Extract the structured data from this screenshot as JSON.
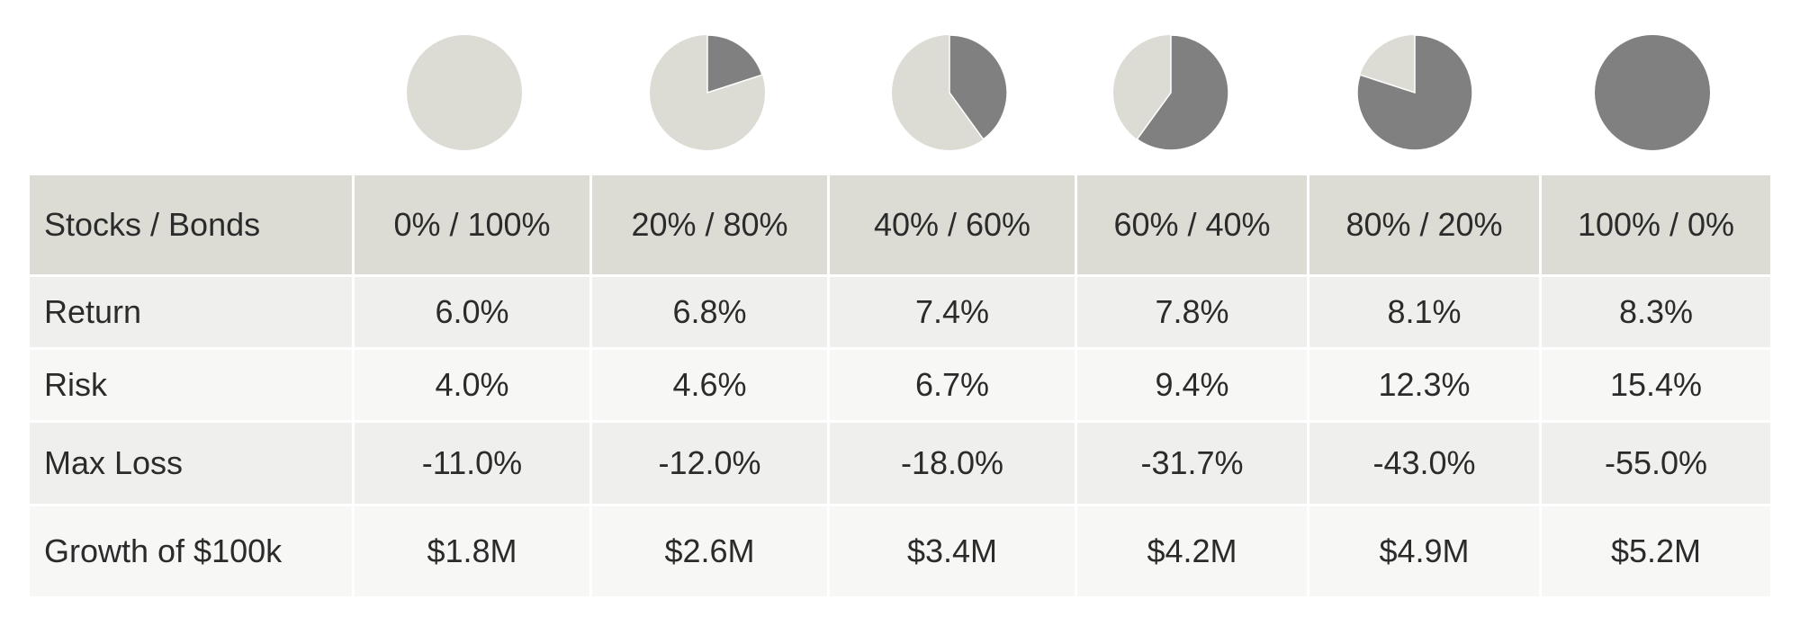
{
  "colors": {
    "bonds": "#dcdcd5",
    "stocks": "#808080",
    "header_bg": "#dcdcd5",
    "row_odd_bg": "#efefed",
    "row_even_bg": "#f7f7f6"
  },
  "chart_data": {
    "type": "table",
    "title": "",
    "columns": [
      "Stocks / Bonds",
      "0% / 100%",
      "20% / 80%",
      "40% / 60%",
      "60% / 40%",
      "80% / 20%",
      "100% / 0%"
    ],
    "pie_series": [
      {
        "stocks": 0,
        "bonds": 100
      },
      {
        "stocks": 20,
        "bonds": 80
      },
      {
        "stocks": 40,
        "bonds": 60
      },
      {
        "stocks": 60,
        "bonds": 40
      },
      {
        "stocks": 80,
        "bonds": 20
      },
      {
        "stocks": 100,
        "bonds": 0
      }
    ],
    "rows": [
      {
        "label": "Return",
        "values": [
          "6.0%",
          "6.8%",
          "7.4%",
          "7.8%",
          "8.1%",
          "8.3%"
        ]
      },
      {
        "label": "Risk",
        "values": [
          "4.0%",
          "4.6%",
          "6.7%",
          "9.4%",
          "12.3%",
          "15.4%"
        ]
      },
      {
        "label": "Max Loss",
        "values": [
          "-11.0%",
          "-12.0%",
          "-18.0%",
          "-31.7%",
          "-43.0%",
          "-55.0%"
        ]
      },
      {
        "label": "Growth of $100k",
        "values": [
          "$1.8M",
          "$2.6M",
          "$3.4M",
          "$4.2M",
          "$4.9M",
          "$5.2M"
        ]
      }
    ]
  }
}
